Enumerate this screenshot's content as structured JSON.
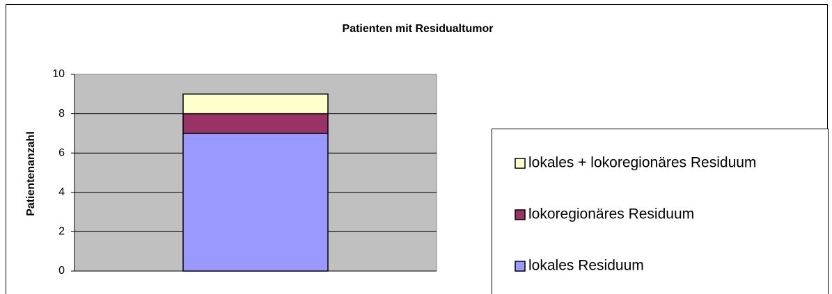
{
  "chart_data": {
    "type": "stacked_bar",
    "title": "Patienten mit Residualtumor",
    "y_label": "Patientenanzahl",
    "categories": [
      null
    ],
    "series": [
      {
        "name": "lokales Residuum",
        "color": "#9999ff",
        "values": [
          7
        ]
      },
      {
        "name": "lokoregionäres Residuum",
        "color": "#993366",
        "values": [
          1
        ]
      },
      {
        "name": "lokales + lokoregionäres Residuum",
        "color": "#ffffcc",
        "values": [
          1
        ]
      }
    ],
    "ylim": [
      0,
      10
    ],
    "yticks": [
      0,
      2,
      4,
      6,
      8,
      10
    ],
    "grid": true,
    "legend": "right"
  }
}
